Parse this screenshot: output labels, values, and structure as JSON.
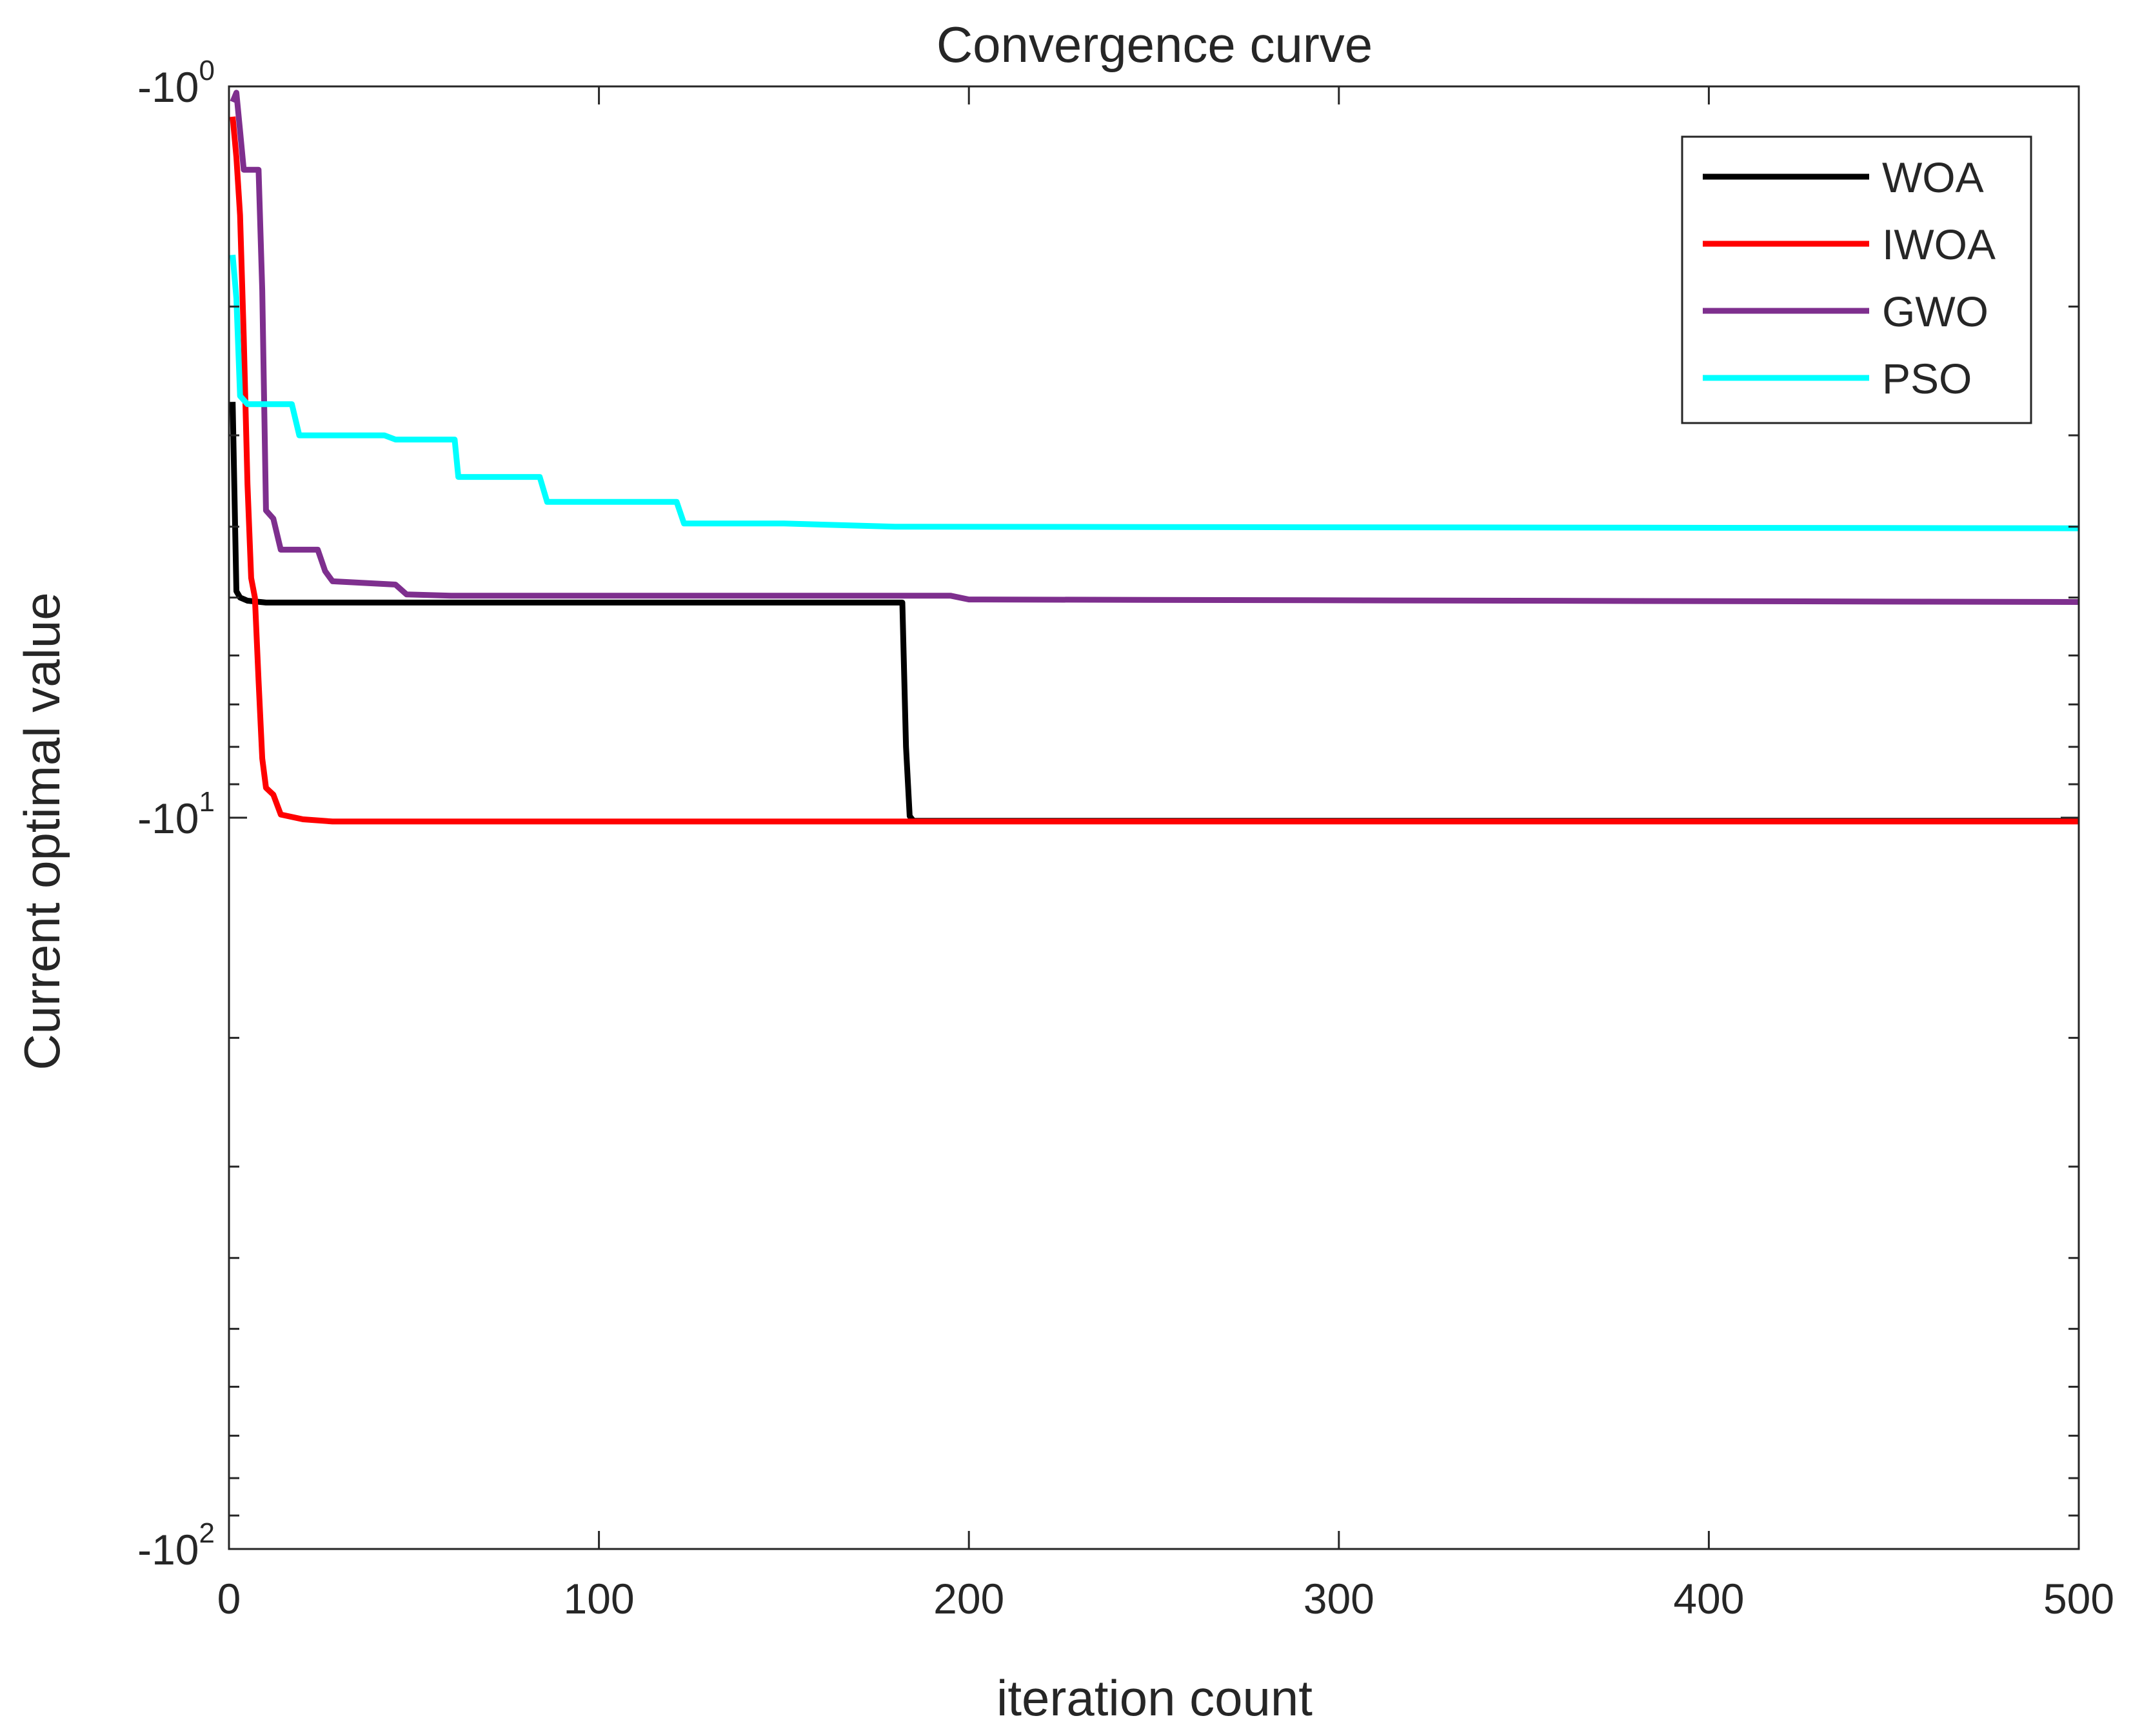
{
  "chart_data": {
    "type": "line",
    "title": "Convergence curve",
    "xlabel": "iteration count",
    "ylabel": "Current optimal value",
    "xlim": [
      0,
      500
    ],
    "y_scale": "log of magnitude (negative values)",
    "ylim_magnitude": [
      1,
      100
    ],
    "x_ticks": [
      "0",
      "100",
      "200",
      "300",
      "400",
      "500"
    ],
    "x_tick_values": [
      0,
      100,
      200,
      300,
      400,
      500
    ],
    "y_ticks": [
      {
        "base": "-10",
        "exp": "0",
        "magnitude": 1
      },
      {
        "base": "-10",
        "exp": "1",
        "magnitude": 10
      },
      {
        "base": "-10",
        "exp": "2",
        "magnitude": 100
      }
    ],
    "grid": false,
    "legend_position": "top-right",
    "series": [
      {
        "name": "WOA",
        "color": "#000000",
        "points": [
          [
            1,
            2.7
          ],
          [
            2,
            4.9
          ],
          [
            3,
            5.0
          ],
          [
            5,
            5.05
          ],
          [
            10,
            5.08
          ],
          [
            182,
            5.08
          ],
          [
            183,
            8.0
          ],
          [
            184,
            9.95
          ],
          [
            185,
            10.1
          ],
          [
            500,
            10.1
          ]
        ]
      },
      {
        "name": "IWOA",
        "color": "#ff0000",
        "points": [
          [
            1,
            1.1
          ],
          [
            2,
            1.25
          ],
          [
            3,
            1.5
          ],
          [
            4,
            2.2
          ],
          [
            5,
            3.5
          ],
          [
            6,
            4.7
          ],
          [
            7,
            5.0
          ],
          [
            8,
            6.5
          ],
          [
            9,
            8.3
          ],
          [
            10,
            9.1
          ],
          [
            12,
            9.3
          ],
          [
            14,
            9.9
          ],
          [
            20,
            10.05
          ],
          [
            28,
            10.12
          ],
          [
            500,
            10.12
          ]
        ]
      },
      {
        "name": "GWO",
        "color": "#7e2f8e",
        "points": [
          [
            1,
            1.05
          ],
          [
            2,
            1.02
          ],
          [
            3,
            1.15
          ],
          [
            4,
            1.3
          ],
          [
            8,
            1.3
          ],
          [
            9,
            1.9
          ],
          [
            10,
            3.8
          ],
          [
            12,
            3.9
          ],
          [
            14,
            4.3
          ],
          [
            24,
            4.3
          ],
          [
            26,
            4.6
          ],
          [
            28,
            4.75
          ],
          [
            45,
            4.8
          ],
          [
            48,
            4.95
          ],
          [
            60,
            4.97
          ],
          [
            195,
            4.97
          ],
          [
            200,
            5.03
          ],
          [
            500,
            5.07
          ]
        ]
      },
      {
        "name": "PSO",
        "color": "#00ffff",
        "points": [
          [
            1,
            1.7
          ],
          [
            2,
            1.95
          ],
          [
            3,
            2.65
          ],
          [
            5,
            2.72
          ],
          [
            17,
            2.72
          ],
          [
            19,
            3.0
          ],
          [
            42,
            3.0
          ],
          [
            45,
            3.04
          ],
          [
            61,
            3.04
          ],
          [
            62,
            3.42
          ],
          [
            84,
            3.42
          ],
          [
            86,
            3.7
          ],
          [
            121,
            3.7
          ],
          [
            123,
            3.96
          ],
          [
            150,
            3.96
          ],
          [
            180,
            4.0
          ],
          [
            500,
            4.02
          ]
        ]
      }
    ]
  }
}
